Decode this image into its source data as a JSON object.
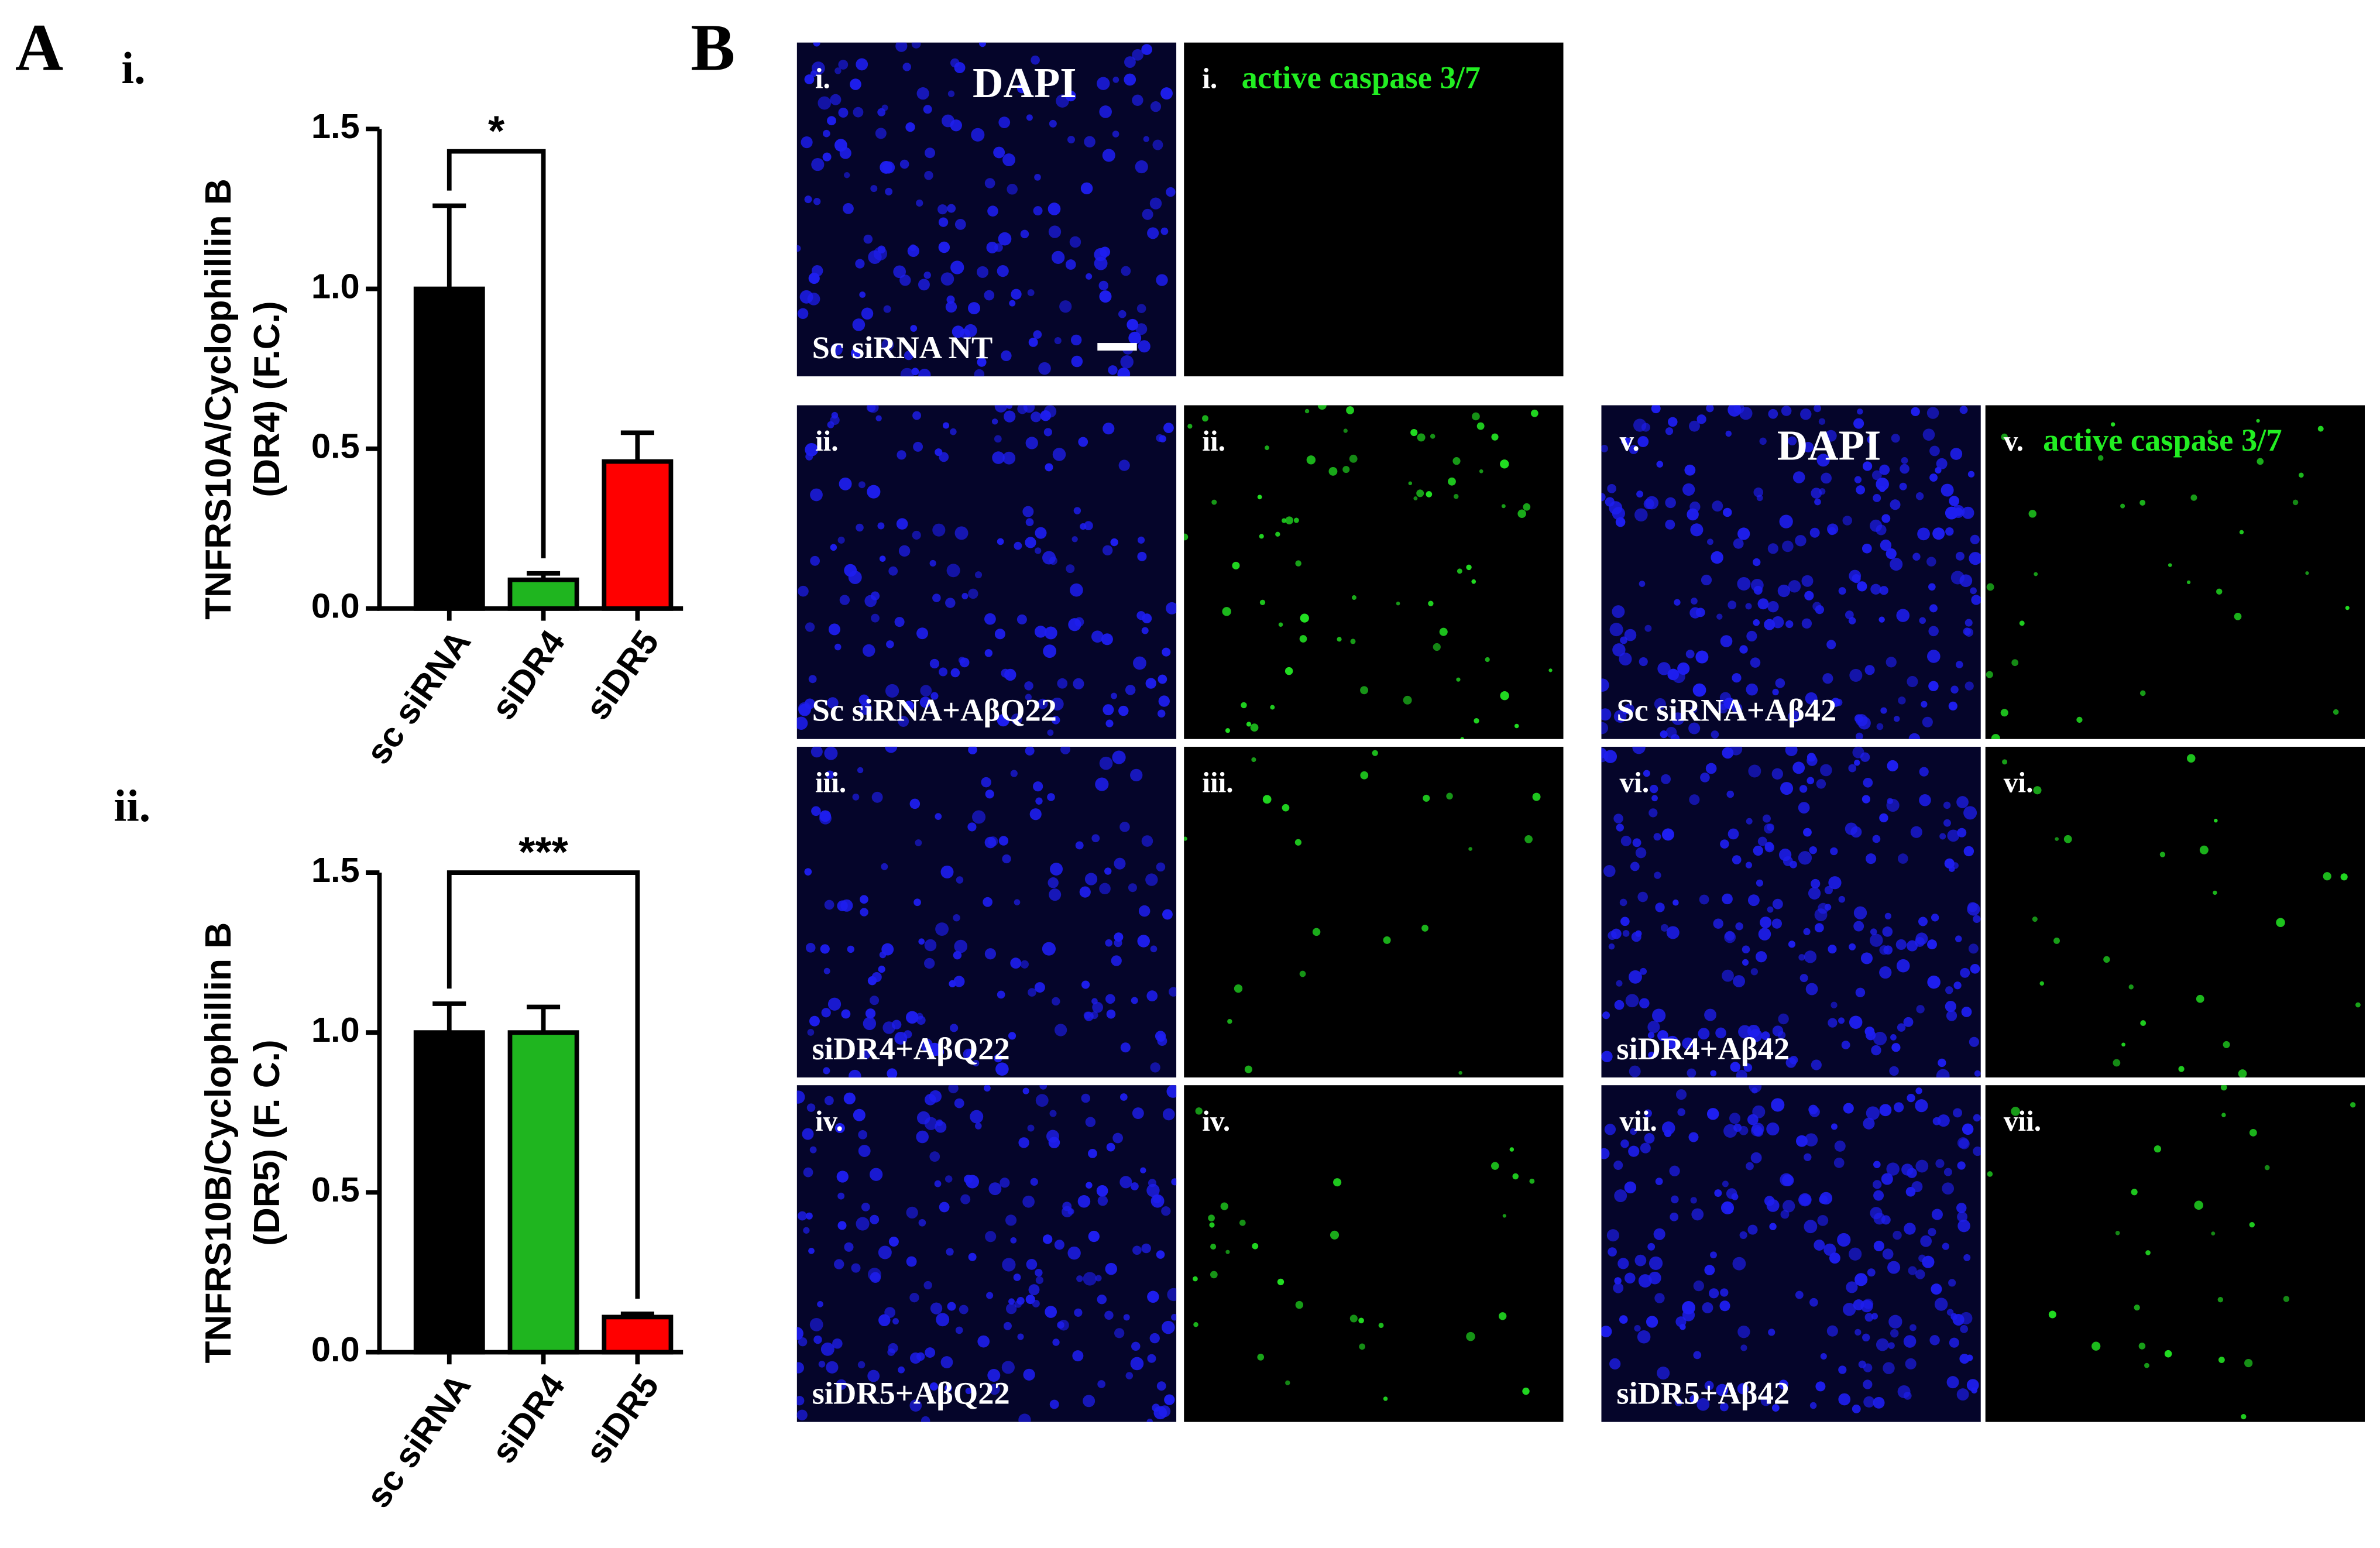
{
  "chart_data": [
    {
      "type": "bar",
      "panel": "i.",
      "ylabel": [
        "TNFRS10A/Cyclophillin B",
        "(DR4) (F.C.)"
      ],
      "categories": [
        "sc siRNA",
        "siDR4",
        "siDR5"
      ],
      "values": [
        1.0,
        0.09,
        0.46
      ],
      "errors": [
        0.26,
        0.02,
        0.09
      ],
      "colors": [
        "#000000",
        "#1fb51f",
        "#ff0000"
      ],
      "ylim": [
        0,
        1.5
      ],
      "yticks": [
        {
          "value": 0,
          "label": "0.0"
        },
        {
          "value": 0.5,
          "label": "0.5"
        },
        {
          "value": 1,
          "label": "1.0"
        },
        {
          "value": 1.5,
          "label": "1.5"
        }
      ],
      "annotations": [
        {
          "text": "*",
          "from": 0,
          "to": 1,
          "y": 1.43
        }
      ]
    },
    {
      "type": "bar",
      "panel": "ii.",
      "ylabel": [
        "TNFRS10B/Cyclophillin B",
        "(DR5) (F. C.)"
      ],
      "categories": [
        "sc siRNA",
        "siDR4",
        "siDR5"
      ],
      "values": [
        1.0,
        1.0,
        0.11
      ],
      "errors": [
        0.09,
        0.08,
        0.01
      ],
      "colors": [
        "#000000",
        "#1fb51f",
        "#ff0000"
      ],
      "ylim": [
        0,
        1.5
      ],
      "yticks": [
        {
          "value": 0,
          "label": "0.0"
        },
        {
          "value": 0.5,
          "label": "0.5"
        },
        {
          "value": 1,
          "label": "1.0"
        },
        {
          "value": 1.5,
          "label": "1.5"
        }
      ],
      "annotations": [
        {
          "text": "***",
          "from": 0,
          "to": 2,
          "y": 1.5
        }
      ]
    }
  ],
  "figure": {
    "panel_a": "A",
    "panel_b": "B",
    "tiles": [
      {
        "channel": "dapi",
        "numeral": "i.",
        "title": "DAPI",
        "condition": "Sc siRNA NT"
      },
      {
        "channel": "caspase",
        "numeral": "i.",
        "title": "active caspase 3/7"
      },
      {
        "channel": "dapi",
        "numeral": "ii.",
        "condition": "Sc siRNA+AβQ22"
      },
      {
        "channel": "caspase",
        "numeral": "ii."
      },
      {
        "channel": "dapi",
        "numeral": "iii.",
        "condition": "siDR4+AβQ22"
      },
      {
        "channel": "caspase",
        "numeral": "iii."
      },
      {
        "channel": "dapi",
        "numeral": "iv.",
        "condition": "siDR5+AβQ22"
      },
      {
        "channel": "caspase",
        "numeral": "iv."
      },
      {
        "channel": "dapi",
        "numeral": "v.",
        "title": "DAPI",
        "condition": "Sc siRNA+Aβ42"
      },
      {
        "channel": "caspase",
        "numeral": "v.",
        "title": "active caspase 3/7"
      },
      {
        "channel": "dapi",
        "numeral": "vi.",
        "condition": "siDR4+Aβ42"
      },
      {
        "channel": "caspase",
        "numeral": "vi."
      },
      {
        "channel": "dapi",
        "numeral": "vii.",
        "condition": "siDR5+Aβ42"
      },
      {
        "channel": "caspase",
        "numeral": "vii."
      }
    ]
  }
}
